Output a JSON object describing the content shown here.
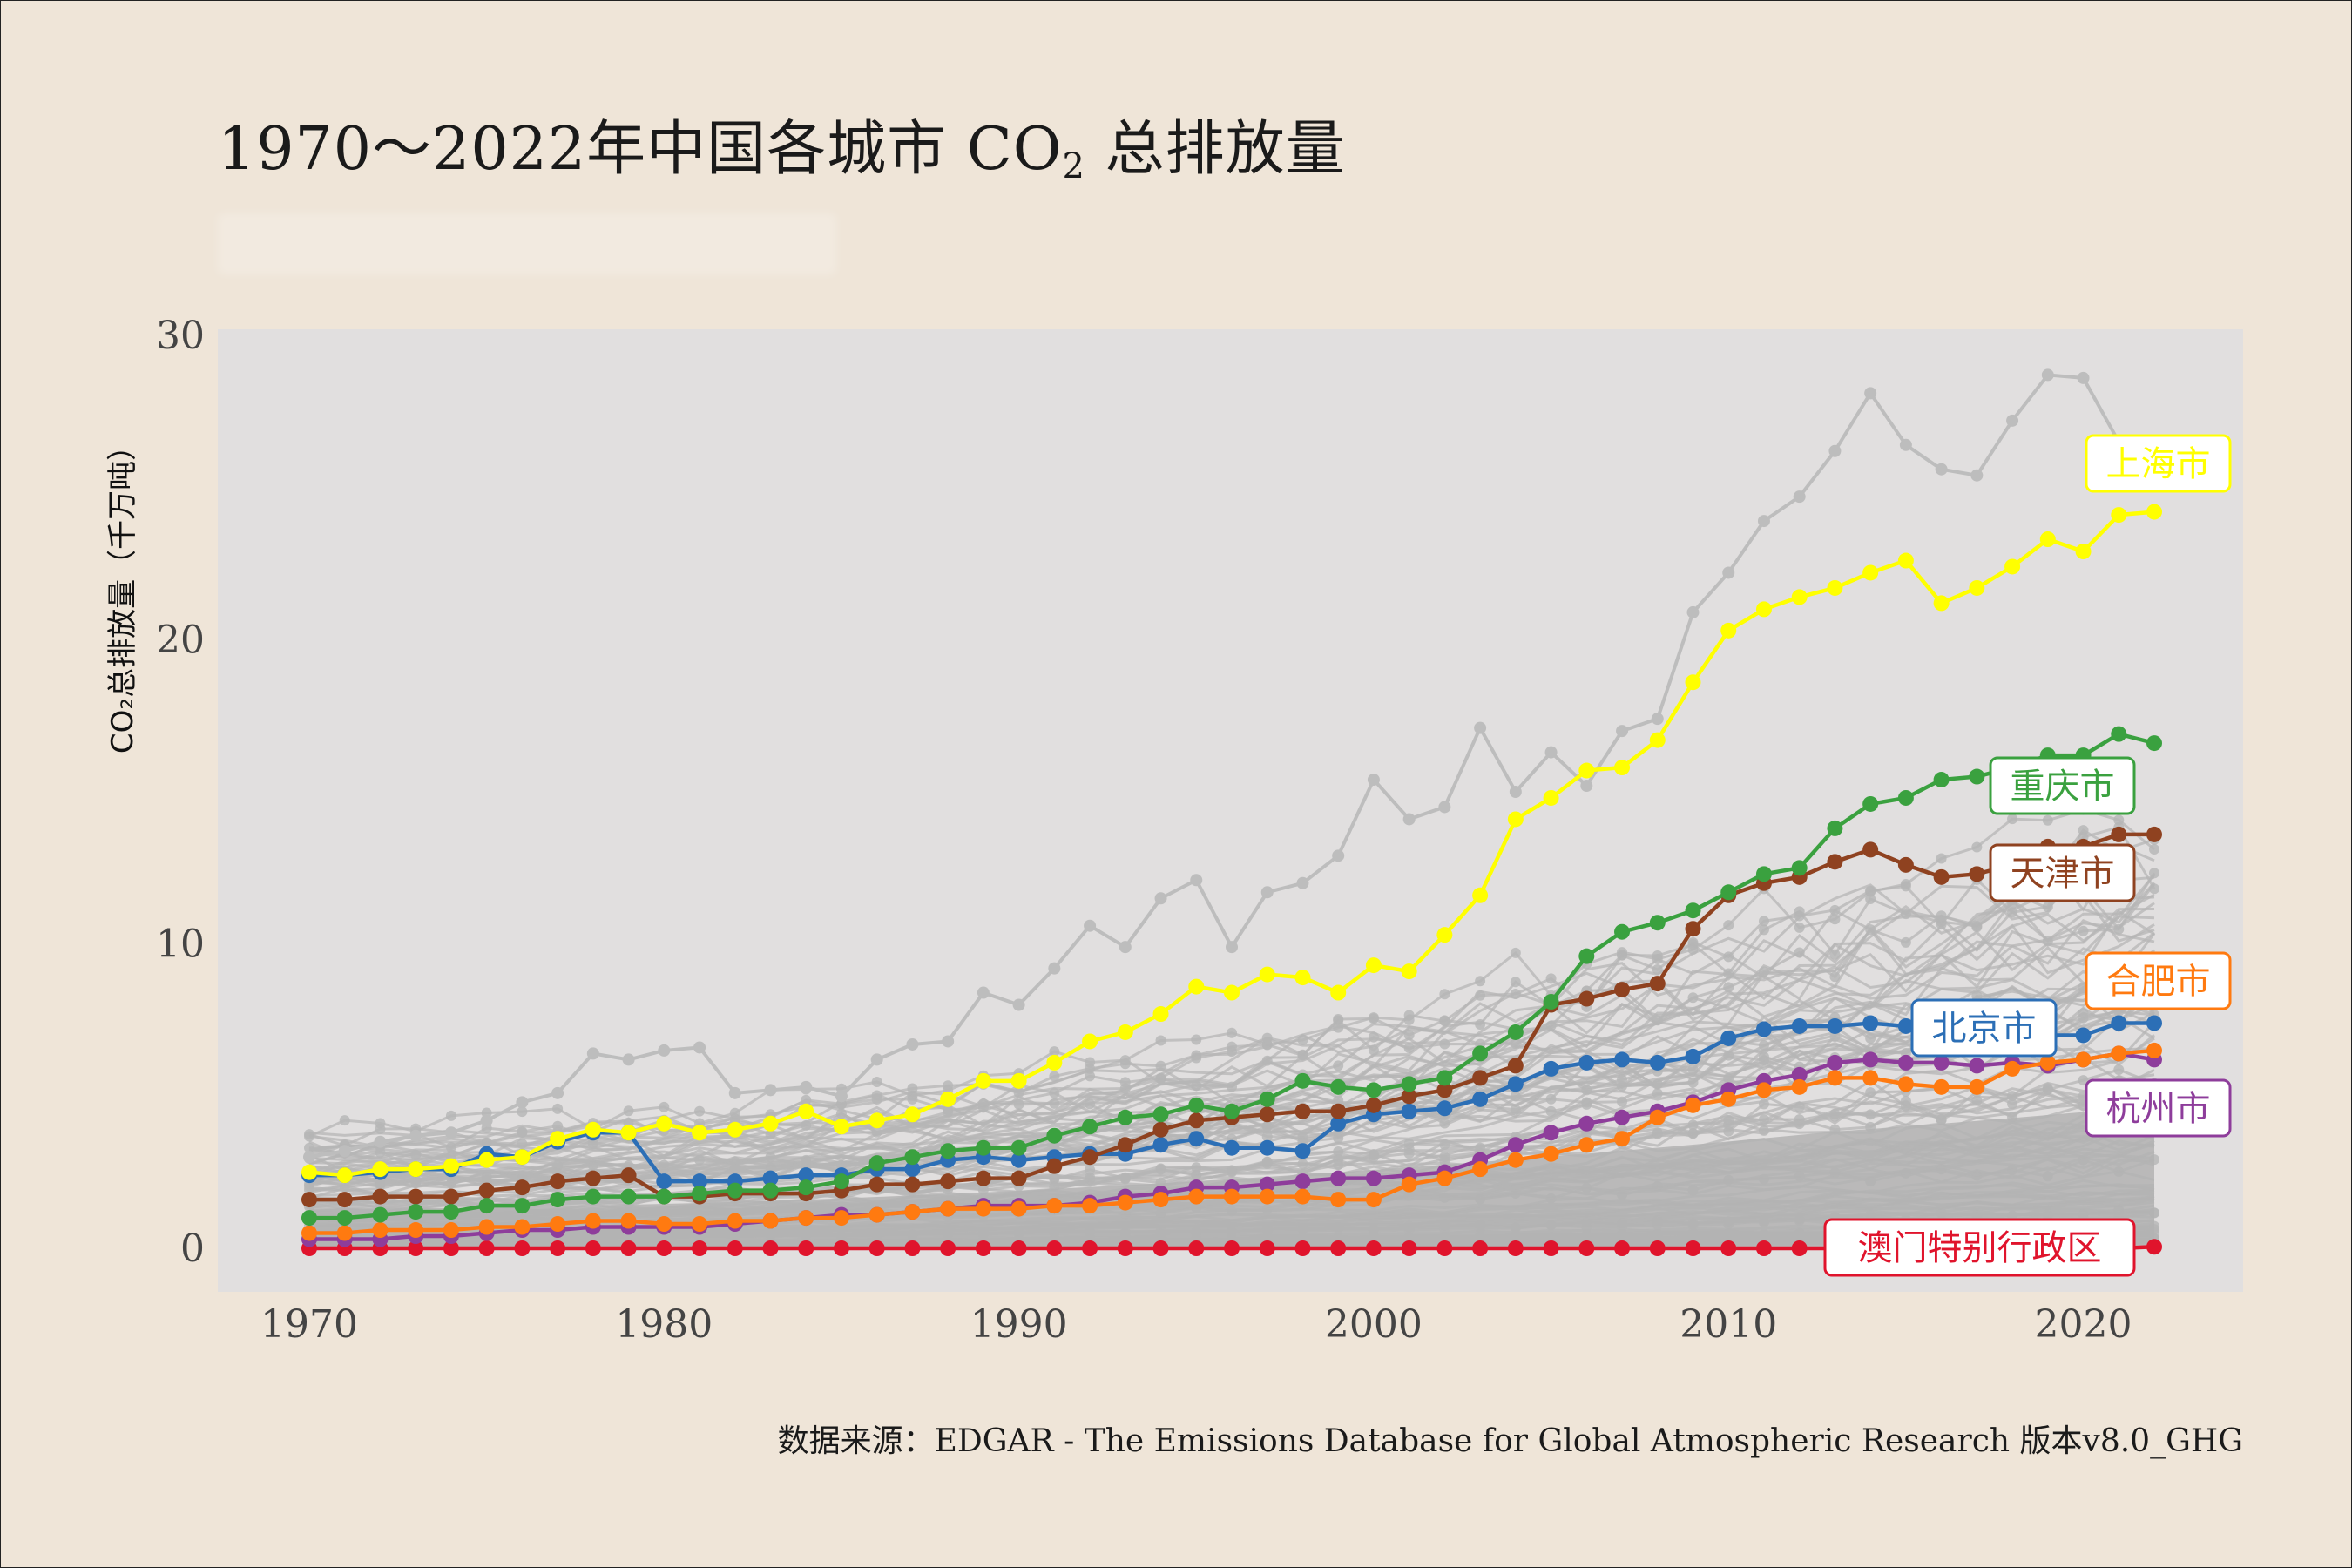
{
  "title": {
    "main": "1970～2022年中国各城市 CO",
    "sub": "2",
    "suffix": " 总排放量"
  },
  "caption": "数据来源：EDGAR - The Emissions Database for Global Atmospheric Research 版本v8.0_GHG",
  "chart_data": {
    "type": "line",
    "ylabel": "CO₂总排放量（千万吨）",
    "xlim": [
      1970,
      2022
    ],
    "ylim": [
      0,
      30
    ],
    "x_ticks": [
      1970,
      1980,
      1990,
      2000,
      2010,
      2020
    ],
    "y_ticks": [
      0,
      10,
      20,
      30
    ],
    "highlight_series": [
      {
        "name": "上海市",
        "color": "#ffff00",
        "values": [
          2.5,
          2.4,
          2.6,
          2.6,
          2.7,
          2.9,
          3.0,
          3.6,
          3.9,
          3.8,
          4.1,
          3.8,
          3.9,
          4.1,
          4.5,
          4.0,
          4.2,
          4.4,
          4.9,
          5.5,
          5.5,
          6.1,
          6.8,
          7.1,
          7.7,
          8.6,
          8.4,
          9.0,
          8.9,
          8.4,
          9.3,
          9.1,
          10.3,
          11.6,
          14.1,
          14.8,
          15.7,
          15.8,
          16.7,
          18.6,
          20.3,
          21.0,
          21.4,
          21.7,
          22.2,
          22.6,
          21.2,
          21.7,
          22.4,
          23.3,
          22.9,
          24.1,
          24.2
        ]
      },
      {
        "name": "重庆市",
        "color": "#3aa13f",
        "values": [
          1.0,
          1.0,
          1.1,
          1.2,
          1.2,
          1.4,
          1.4,
          1.6,
          1.7,
          1.7,
          1.7,
          1.8,
          1.9,
          1.9,
          2.0,
          2.2,
          2.8,
          3.0,
          3.2,
          3.3,
          3.3,
          3.7,
          4.0,
          4.3,
          4.4,
          4.7,
          4.5,
          4.9,
          5.5,
          5.3,
          5.2,
          5.4,
          5.6,
          6.4,
          7.1,
          8.1,
          9.6,
          10.4,
          10.7,
          11.1,
          11.7,
          12.3,
          12.5,
          13.8,
          14.6,
          14.8,
          15.4,
          15.5,
          15.8,
          16.2,
          16.2,
          16.9,
          16.6
        ]
      },
      {
        "name": "天津市",
        "color": "#8f4220",
        "values": [
          1.6,
          1.6,
          1.7,
          1.7,
          1.7,
          1.9,
          2.0,
          2.2,
          2.3,
          2.4,
          1.7,
          1.7,
          1.8,
          1.8,
          1.8,
          1.9,
          2.1,
          2.1,
          2.2,
          2.3,
          2.3,
          2.7,
          3.0,
          3.4,
          3.9,
          4.2,
          4.3,
          4.4,
          4.5,
          4.5,
          4.7,
          5.0,
          5.2,
          5.6,
          6.0,
          8.0,
          8.2,
          8.5,
          8.7,
          10.5,
          11.6,
          12.0,
          12.2,
          12.7,
          13.1,
          12.6,
          12.2,
          12.3,
          12.6,
          13.2,
          13.2,
          13.6,
          13.6
        ]
      },
      {
        "name": "合肥市",
        "color": "#ff7a10",
        "values": [
          0.5,
          0.5,
          0.6,
          0.6,
          0.6,
          0.7,
          0.7,
          0.8,
          0.9,
          0.9,
          0.8,
          0.8,
          0.9,
          0.9,
          1.0,
          1.0,
          1.1,
          1.2,
          1.3,
          1.3,
          1.3,
          1.4,
          1.4,
          1.5,
          1.6,
          1.7,
          1.7,
          1.7,
          1.7,
          1.6,
          1.6,
          2.1,
          2.3,
          2.6,
          2.9,
          3.1,
          3.4,
          3.6,
          4.3,
          4.7,
          4.9,
          5.2,
          5.3,
          5.6,
          5.6,
          5.4,
          5.3,
          5.3,
          5.9,
          6.1,
          6.2,
          6.4,
          6.5
        ]
      },
      {
        "name": "北京市",
        "color": "#2c6fb6",
        "values": [
          2.4,
          2.4,
          2.5,
          2.6,
          2.6,
          3.1,
          3.0,
          3.5,
          3.8,
          3.8,
          2.2,
          2.2,
          2.2,
          2.3,
          2.4,
          2.4,
          2.6,
          2.6,
          2.9,
          3.0,
          2.9,
          3.0,
          3.1,
          3.1,
          3.4,
          3.6,
          3.3,
          3.3,
          3.2,
          4.1,
          4.4,
          4.5,
          4.6,
          4.9,
          5.4,
          5.9,
          6.1,
          6.2,
          6.1,
          6.3,
          6.9,
          7.2,
          7.3,
          7.3,
          7.4,
          7.3,
          7.4,
          7.2,
          7.1,
          7.0,
          7.0,
          7.4,
          7.4
        ]
      },
      {
        "name": "杭州市",
        "color": "#8e3d9b",
        "values": [
          0.3,
          0.3,
          0.3,
          0.4,
          0.4,
          0.5,
          0.6,
          0.6,
          0.7,
          0.7,
          0.7,
          0.7,
          0.8,
          0.9,
          1.0,
          1.1,
          1.1,
          1.2,
          1.3,
          1.4,
          1.4,
          1.4,
          1.5,
          1.7,
          1.8,
          2.0,
          2.0,
          2.1,
          2.2,
          2.3,
          2.3,
          2.4,
          2.5,
          2.9,
          3.4,
          3.8,
          4.1,
          4.3,
          4.5,
          4.8,
          5.2,
          5.5,
          5.7,
          6.1,
          6.2,
          6.1,
          6.1,
          6.0,
          6.1,
          6.0,
          6.2,
          6.4,
          6.2
        ]
      },
      {
        "name": "澳门特别行政区",
        "color": "#e0142c",
        "values": [
          0,
          0,
          0,
          0,
          0,
          0,
          0,
          0,
          0,
          0,
          0,
          0,
          0,
          0,
          0,
          0,
          0,
          0,
          0,
          0,
          0,
          0,
          0,
          0,
          0,
          0,
          0,
          0,
          0,
          0,
          0,
          0,
          0,
          0,
          0,
          0,
          0,
          0,
          0,
          0,
          0,
          0,
          0,
          0,
          0,
          0,
          0,
          0,
          0,
          0,
          0,
          0,
          0.05
        ]
      }
    ],
    "background_series_color": "#b5b5b5",
    "grid": false,
    "panel_background": "#e1dfdf"
  }
}
